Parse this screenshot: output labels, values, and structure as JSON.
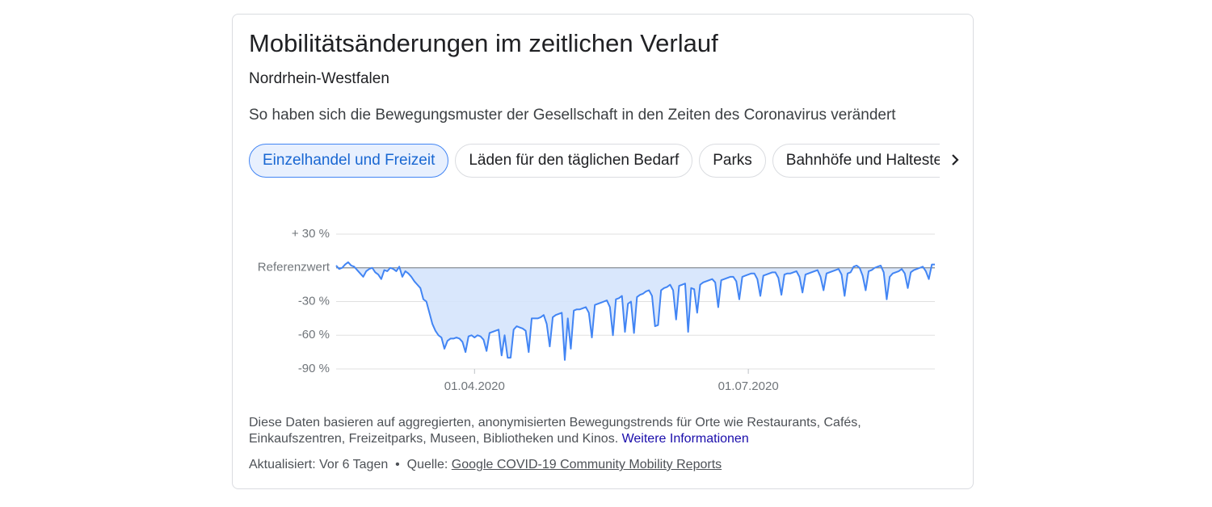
{
  "header": {
    "title": "Mobilitätsänderungen im zeitlichen Verlauf",
    "region": "Nordrhein-Westfalen",
    "description": "So haben sich die Bewegungsmuster der Gesellschaft in den Zeiten des Coronavirus verändert"
  },
  "tabs": [
    "Einzelhandel und Freizeit",
    "Läden für den täglichen Bedarf",
    "Parks",
    "Bahnhöfe und Haltestellen"
  ],
  "chart_data": {
    "type": "area",
    "x": [
      "15.02.2020",
      "16.02.2020",
      "17.02.2020",
      "18.02.2020",
      "19.02.2020",
      "20.02.2020",
      "21.02.2020",
      "22.02.2020",
      "23.02.2020",
      "24.02.2020",
      "25.02.2020",
      "26.02.2020",
      "27.02.2020",
      "28.02.2020",
      "29.02.2020",
      "01.03.2020",
      "02.03.2020",
      "03.03.2020",
      "04.03.2020",
      "05.03.2020",
      "06.03.2020",
      "07.03.2020",
      "08.03.2020",
      "09.03.2020",
      "10.03.2020",
      "11.03.2020",
      "12.03.2020",
      "13.03.2020",
      "14.03.2020",
      "15.03.2020",
      "16.03.2020",
      "17.03.2020",
      "18.03.2020",
      "19.03.2020",
      "20.03.2020",
      "21.03.2020",
      "22.03.2020",
      "23.03.2020",
      "24.03.2020",
      "25.03.2020",
      "26.03.2020",
      "27.03.2020",
      "28.03.2020",
      "29.03.2020",
      "30.03.2020",
      "31.03.2020",
      "01.04.2020",
      "02.04.2020",
      "03.04.2020",
      "04.04.2020",
      "05.04.2020",
      "06.04.2020",
      "07.04.2020",
      "08.04.2020",
      "09.04.2020",
      "10.04.2020",
      "11.04.2020",
      "12.04.2020",
      "13.04.2020",
      "14.04.2020",
      "15.04.2020",
      "16.04.2020",
      "17.04.2020",
      "18.04.2020",
      "19.04.2020",
      "20.04.2020",
      "21.04.2020",
      "22.04.2020",
      "23.04.2020",
      "24.04.2020",
      "25.04.2020",
      "26.04.2020",
      "27.04.2020",
      "28.04.2020",
      "29.04.2020",
      "30.04.2020",
      "01.05.2020",
      "02.05.2020",
      "03.05.2020",
      "04.05.2020",
      "05.05.2020",
      "06.05.2020",
      "07.05.2020",
      "08.05.2020",
      "09.05.2020",
      "10.05.2020",
      "11.05.2020",
      "12.05.2020",
      "13.05.2020",
      "14.05.2020",
      "15.05.2020",
      "16.05.2020",
      "17.05.2020",
      "18.05.2020",
      "19.05.2020",
      "20.05.2020",
      "21.05.2020",
      "22.05.2020",
      "23.05.2020",
      "24.05.2020",
      "25.05.2020",
      "26.05.2020",
      "27.05.2020",
      "28.05.2020",
      "29.05.2020",
      "30.05.2020",
      "31.05.2020",
      "01.06.2020",
      "02.06.2020",
      "03.06.2020",
      "04.06.2020",
      "05.06.2020",
      "06.06.2020",
      "07.06.2020",
      "08.06.2020",
      "09.06.2020",
      "10.06.2020",
      "11.06.2020",
      "12.06.2020",
      "13.06.2020",
      "14.06.2020",
      "15.06.2020",
      "16.06.2020",
      "17.06.2020",
      "18.06.2020",
      "19.06.2020",
      "20.06.2020",
      "21.06.2020",
      "22.06.2020",
      "23.06.2020",
      "24.06.2020",
      "25.06.2020",
      "26.06.2020",
      "27.06.2020",
      "28.06.2020",
      "29.06.2020",
      "30.06.2020",
      "01.07.2020",
      "02.07.2020",
      "03.07.2020",
      "04.07.2020",
      "05.07.2020",
      "06.07.2020",
      "07.07.2020",
      "08.07.2020",
      "09.07.2020",
      "10.07.2020",
      "11.07.2020",
      "12.07.2020",
      "13.07.2020",
      "14.07.2020",
      "15.07.2020",
      "16.07.2020",
      "17.07.2020",
      "18.07.2020",
      "19.07.2020",
      "20.07.2020",
      "21.07.2020",
      "22.07.2020",
      "23.07.2020",
      "24.07.2020",
      "25.07.2020",
      "26.07.2020",
      "27.07.2020",
      "28.07.2020",
      "29.07.2020",
      "30.07.2020",
      "31.07.2020",
      "01.08.2020",
      "02.08.2020",
      "03.08.2020",
      "04.08.2020",
      "05.08.2020",
      "06.08.2020",
      "07.08.2020",
      "08.08.2020",
      "09.08.2020",
      "10.08.2020",
      "11.08.2020",
      "12.08.2020",
      "13.08.2020",
      "14.08.2020",
      "15.08.2020",
      "16.08.2020",
      "17.08.2020",
      "18.08.2020",
      "19.08.2020",
      "20.08.2020",
      "21.08.2020",
      "22.08.2020",
      "23.08.2020",
      "24.08.2020",
      "25.08.2020",
      "26.08.2020",
      "27.08.2020",
      "28.08.2020",
      "29.08.2020",
      "30.08.2020",
      "31.08.2020",
      "01.09.2020"
    ],
    "values": [
      2,
      -1,
      0,
      3,
      5,
      2,
      1,
      -2,
      -5,
      -8,
      -3,
      -1,
      0,
      -4,
      -6,
      -10,
      -2,
      -3,
      0,
      -1,
      -3,
      1,
      -8,
      -3,
      -5,
      -8,
      -12,
      -15,
      -18,
      -28,
      -30,
      -40,
      -50,
      -56,
      -60,
      -62,
      -72,
      -65,
      -63,
      -63,
      -62,
      -63,
      -66,
      -75,
      -61,
      -60,
      -62,
      -60,
      -61,
      -64,
      -74,
      -58,
      -57,
      -56,
      -55,
      -78,
      -60,
      -80,
      -80,
      -55,
      -52,
      -53,
      -54,
      -56,
      -75,
      -45,
      -45,
      -45,
      -44,
      -42,
      -50,
      -70,
      -44,
      -42,
      -41,
      -40,
      -82,
      -45,
      -72,
      -38,
      -37,
      -37,
      -36,
      -35,
      -40,
      -62,
      -33,
      -32,
      -31,
      -30,
      -29,
      -35,
      -60,
      -28,
      -27,
      -25,
      -57,
      -32,
      -30,
      -58,
      -26,
      -24,
      -23,
      -21,
      -20,
      -25,
      -52,
      -51,
      -20,
      -18,
      -17,
      -15,
      -20,
      -46,
      -16,
      -15,
      -14,
      -57,
      -18,
      -19,
      -40,
      -15,
      -13,
      -12,
      -11,
      -10,
      -13,
      -35,
      -11,
      -10,
      -9,
      -8,
      -8,
      -12,
      -28,
      -8,
      -7,
      -6,
      -5,
      -5,
      -10,
      -25,
      -7,
      -6,
      -5,
      -4,
      -4,
      -9,
      -24,
      -6,
      -5,
      -5,
      -4,
      -3,
      -8,
      -22,
      -6,
      -5,
      -4,
      -3,
      -2,
      -8,
      -20,
      -5,
      -4,
      -3,
      -2,
      -1,
      -6,
      -25,
      -5,
      -4,
      1,
      2,
      0,
      -7,
      -20,
      -3,
      -2,
      0,
      1,
      2,
      -4,
      -28,
      -8,
      -5,
      -4,
      -3,
      -1,
      -5,
      -18,
      -4,
      -2,
      -1,
      0,
      1,
      -3,
      -10,
      3,
      3
    ],
    "color": "#4285f4",
    "fill_color": "#d2e3fc",
    "xlim": [
      "15.02.2020",
      "01.09.2020"
    ],
    "xticks": [
      "01.04.2020",
      "01.07.2020"
    ],
    "ylim": [
      -90,
      30
    ],
    "yticks": [
      {
        "value": 30,
        "label": "+ 30 %"
      },
      {
        "value": 0,
        "label": "Referenzwert"
      },
      {
        "value": -30,
        "label": "-30 %"
      },
      {
        "value": -60,
        "label": "-60 %"
      },
      {
        "value": -90,
        "label": "-90 %"
      }
    ],
    "grid": true
  },
  "footer": {
    "note": "Diese Daten basieren auf aggregierten, anonymisierten Bewegungstrends für Orte wie Restaurants, Cafés, Einkaufszentren, Freizeitparks, Museen, Bibliotheken und Kinos.",
    "more_link": "Weitere Informationen",
    "updated": "Aktualisiert: Vor 6 Tagen",
    "separator": "•",
    "source_label": "Quelle:",
    "source_link": "Google COVID-19 Community Mobility Reports"
  }
}
